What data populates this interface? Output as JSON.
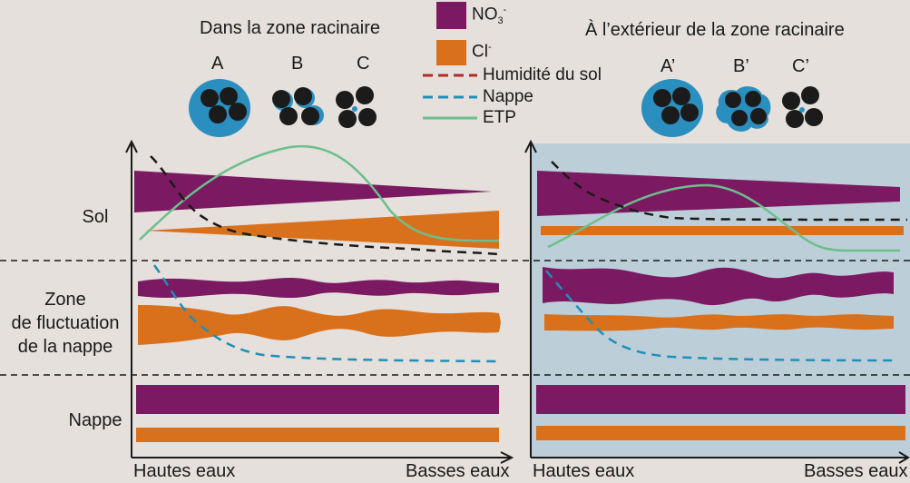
{
  "headers": {
    "inside": "Dans la zone racinaire",
    "outside": "À l’extérieur de la zone racinaire"
  },
  "aggregates": {
    "inside": [
      "A",
      "B",
      "C"
    ],
    "outside": [
      "A’",
      "B’",
      "C’"
    ]
  },
  "legend": {
    "no3": "NO",
    "no3_sub": "3",
    "no3_sup": "-",
    "cl": "Cl",
    "cl_sup": "-",
    "humidity": "Humidité du sol",
    "nappe": "Nappe",
    "etp": "ETP"
  },
  "rows": {
    "sol": "Sol",
    "zone_l1": "Zone",
    "zone_l2": "de fluctuation",
    "zone_l3": "de la nappe",
    "nappe": "Nappe"
  },
  "axis": {
    "left_start": "Hautes eaux",
    "left_end": "Basses eaux",
    "right_start": "Hautes eaux",
    "right_end": "Basses eaux"
  },
  "colors": {
    "background": "#e5e0db",
    "outside_panel": "#bccfd8",
    "no3": "#7b1a63",
    "cl": "#d9701c",
    "humidity": "#b22a28",
    "nappe": "#1f8fb8",
    "etp": "#6cbf8c",
    "particle": "#1b1b1b",
    "water": "#2a8fbf"
  }
}
